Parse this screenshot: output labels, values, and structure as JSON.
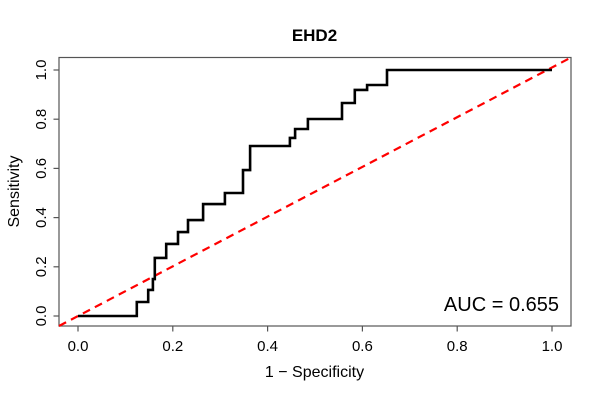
{
  "figure": {
    "title": "EHD2",
    "xlabel": "1 − Specificity",
    "ylabel": "Sensitivity",
    "annotation": "AUC = 0.655"
  },
  "chart_data": {
    "type": "line",
    "subtype": "roc-step-curve",
    "title": "EHD2",
    "xlabel": "1 − Specificity",
    "ylabel": "Sensitivity",
    "xlim": [
      0.0,
      1.0
    ],
    "ylim": [
      0.0,
      1.0
    ],
    "x_ticks": [
      0.0,
      0.2,
      0.4,
      0.6,
      0.8,
      1.0
    ],
    "y_ticks": [
      0.0,
      0.2,
      0.4,
      0.6,
      0.8,
      1.0
    ],
    "grid": false,
    "legend": "none",
    "auc": 0.655,
    "annotation": "AUC = 0.655",
    "colors": {
      "curve": "#000000",
      "diagonal": "#FF0000",
      "axis": "#555555"
    },
    "series": [
      {
        "name": "ROC curve",
        "style": "solid-step",
        "color": "#000000",
        "points": [
          [
            0.0,
            0.0
          ],
          [
            0.124,
            0.0
          ],
          [
            0.124,
            0.057
          ],
          [
            0.148,
            0.057
          ],
          [
            0.148,
            0.106
          ],
          [
            0.158,
            0.106
          ],
          [
            0.158,
            0.15
          ],
          [
            0.162,
            0.15
          ],
          [
            0.162,
            0.236
          ],
          [
            0.186,
            0.236
          ],
          [
            0.186,
            0.293
          ],
          [
            0.211,
            0.293
          ],
          [
            0.211,
            0.341
          ],
          [
            0.232,
            0.341
          ],
          [
            0.232,
            0.39
          ],
          [
            0.264,
            0.39
          ],
          [
            0.264,
            0.455
          ],
          [
            0.31,
            0.455
          ],
          [
            0.31,
            0.5
          ],
          [
            0.348,
            0.5
          ],
          [
            0.348,
            0.593
          ],
          [
            0.363,
            0.593
          ],
          [
            0.363,
            0.691
          ],
          [
            0.447,
            0.691
          ],
          [
            0.447,
            0.724
          ],
          [
            0.458,
            0.724
          ],
          [
            0.458,
            0.76
          ],
          [
            0.485,
            0.76
          ],
          [
            0.485,
            0.801
          ],
          [
            0.557,
            0.801
          ],
          [
            0.557,
            0.866
          ],
          [
            0.584,
            0.866
          ],
          [
            0.584,
            0.919
          ],
          [
            0.61,
            0.919
          ],
          [
            0.61,
            0.939
          ],
          [
            0.652,
            0.939
          ],
          [
            0.652,
            1.0
          ],
          [
            1.0,
            1.0
          ]
        ]
      },
      {
        "name": "Chance diagonal",
        "style": "dashed",
        "color": "#FF0000",
        "points": [
          [
            0.0,
            0.0
          ],
          [
            1.0,
            1.0
          ]
        ]
      }
    ]
  }
}
